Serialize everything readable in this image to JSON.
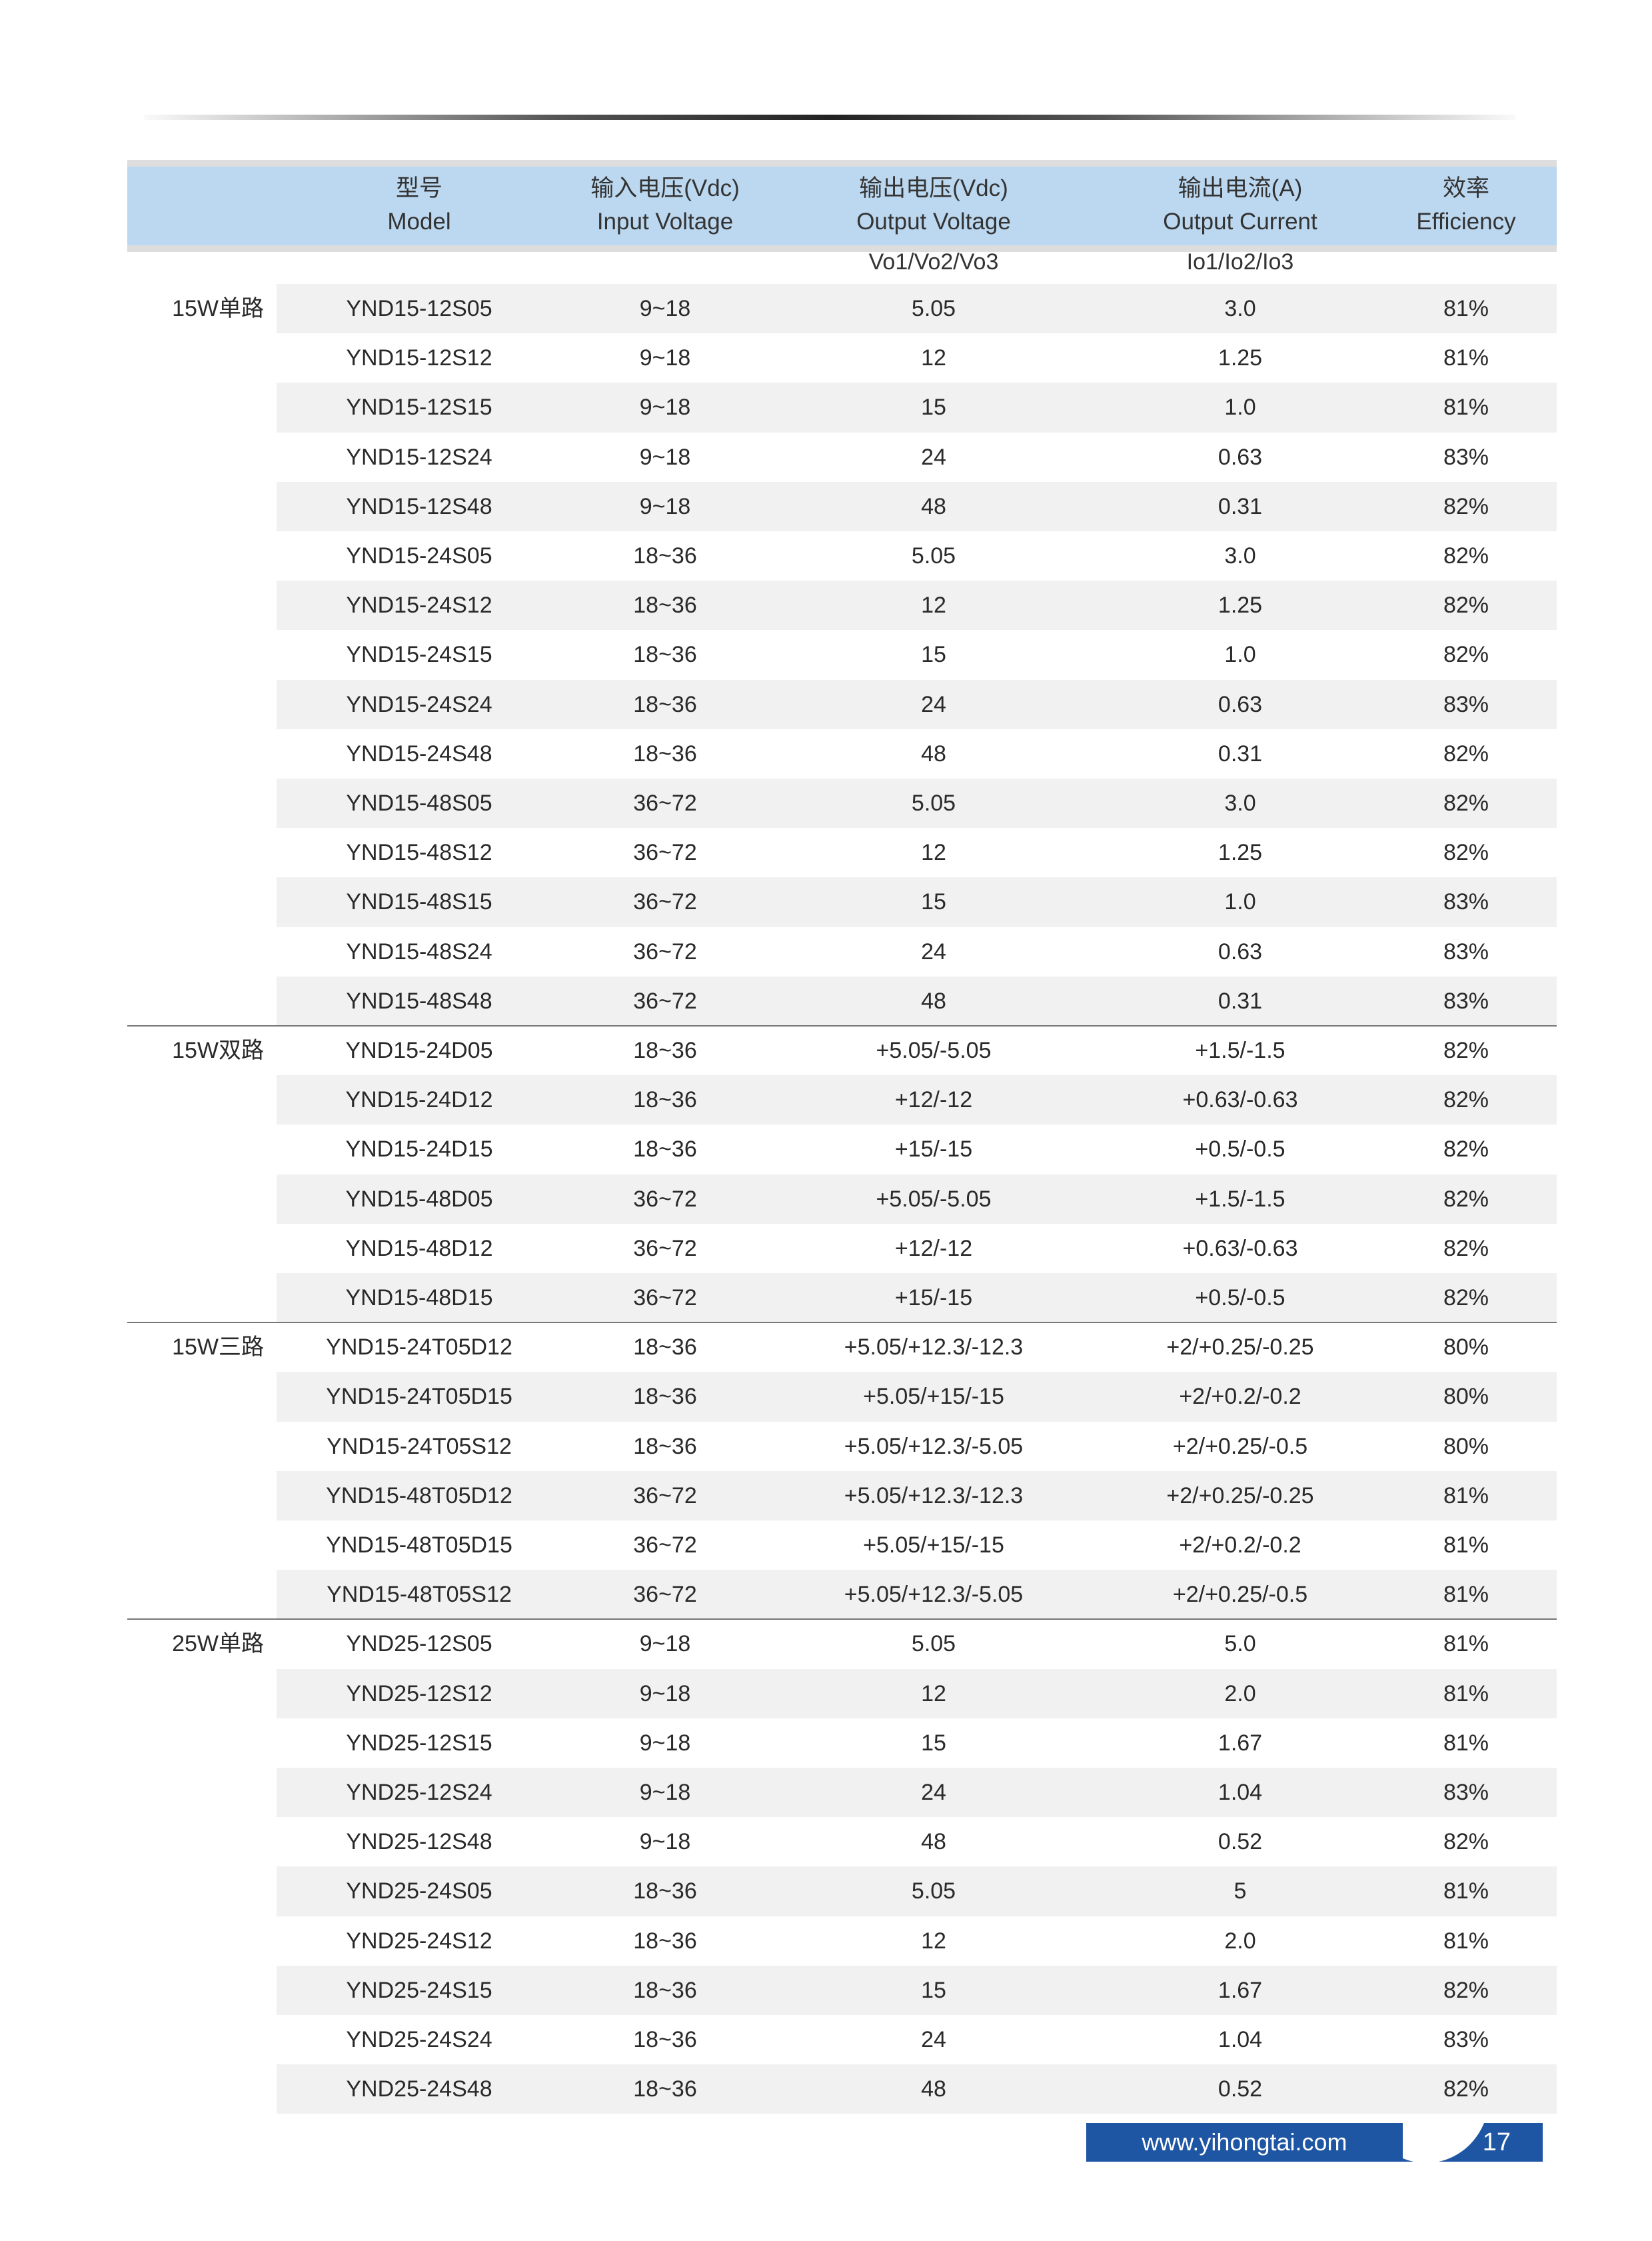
{
  "header": {
    "columns": [
      {
        "zh": "型号",
        "en": "Model"
      },
      {
        "zh": "输入电压(Vdc)",
        "en": "Input Voltage"
      },
      {
        "zh": "输出电压(Vdc)",
        "en": "Output Voltage"
      },
      {
        "zh": "输出电流(A)",
        "en": "Output Current"
      },
      {
        "zh": "效率",
        "en": "Efficiency"
      }
    ],
    "sub_output_voltage": "Vo1/Vo2/Vo3",
    "sub_output_current": "Io1/Io2/Io3"
  },
  "groups": [
    {
      "label": "15W单路",
      "rows": [
        [
          "YND15-12S05",
          "9~18",
          "5.05",
          "3.0",
          "81%"
        ],
        [
          "YND15-12S12",
          "9~18",
          "12",
          "1.25",
          "81%"
        ],
        [
          "YND15-12S15",
          "9~18",
          "15",
          "1.0",
          "81%"
        ],
        [
          "YND15-12S24",
          "9~18",
          "24",
          "0.63",
          "83%"
        ],
        [
          "YND15-12S48",
          "9~18",
          "48",
          "0.31",
          "82%"
        ],
        [
          "YND15-24S05",
          "18~36",
          "5.05",
          "3.0",
          "82%"
        ],
        [
          "YND15-24S12",
          "18~36",
          "12",
          "1.25",
          "82%"
        ],
        [
          "YND15-24S15",
          "18~36",
          "15",
          "1.0",
          "82%"
        ],
        [
          "YND15-24S24",
          "18~36",
          "24",
          "0.63",
          "83%"
        ],
        [
          "YND15-24S48",
          "18~36",
          "48",
          "0.31",
          "82%"
        ],
        [
          "YND15-48S05",
          "36~72",
          "5.05",
          "3.0",
          "82%"
        ],
        [
          "YND15-48S12",
          "36~72",
          "12",
          "1.25",
          "82%"
        ],
        [
          "YND15-48S15",
          "36~72",
          "15",
          "1.0",
          "83%"
        ],
        [
          "YND15-48S24",
          "36~72",
          "24",
          "0.63",
          "83%"
        ],
        [
          "YND15-48S48",
          "36~72",
          "48",
          "0.31",
          "83%"
        ]
      ]
    },
    {
      "label": "15W双路",
      "rows": [
        [
          "YND15-24D05",
          "18~36",
          "+5.05/-5.05",
          "+1.5/-1.5",
          "82%"
        ],
        [
          "YND15-24D12",
          "18~36",
          "+12/-12",
          "+0.63/-0.63",
          "82%"
        ],
        [
          "YND15-24D15",
          "18~36",
          "+15/-15",
          "+0.5/-0.5",
          "82%"
        ],
        [
          "YND15-48D05",
          "36~72",
          "+5.05/-5.05",
          "+1.5/-1.5",
          "82%"
        ],
        [
          "YND15-48D12",
          "36~72",
          "+12/-12",
          "+0.63/-0.63",
          "82%"
        ],
        [
          "YND15-48D15",
          "36~72",
          "+15/-15",
          "+0.5/-0.5",
          "82%"
        ]
      ]
    },
    {
      "label": "15W三路",
      "rows": [
        [
          "YND15-24T05D12",
          "18~36",
          "+5.05/+12.3/-12.3",
          "+2/+0.25/-0.25",
          "80%"
        ],
        [
          "YND15-24T05D15",
          "18~36",
          "+5.05/+15/-15",
          "+2/+0.2/-0.2",
          "80%"
        ],
        [
          "YND15-24T05S12",
          "18~36",
          "+5.05/+12.3/-5.05",
          "+2/+0.25/-0.5",
          "80%"
        ],
        [
          "YND15-48T05D12",
          "36~72",
          "+5.05/+12.3/-12.3",
          "+2/+0.25/-0.25",
          "81%"
        ],
        [
          "YND15-48T05D15",
          "36~72",
          "+5.05/+15/-15",
          "+2/+0.2/-0.2",
          "81%"
        ],
        [
          "YND15-48T05S12",
          "36~72",
          "+5.05/+12.3/-5.05",
          "+2/+0.25/-0.5",
          "81%"
        ]
      ]
    },
    {
      "label": "25W单路",
      "rows": [
        [
          "YND25-12S05",
          "9~18",
          "5.05",
          "5.0",
          "81%"
        ],
        [
          "YND25-12S12",
          "9~18",
          "12",
          "2.0",
          "81%"
        ],
        [
          "YND25-12S15",
          "9~18",
          "15",
          "1.67",
          "81%"
        ],
        [
          "YND25-12S24",
          "9~18",
          "24",
          "1.04",
          "83%"
        ],
        [
          "YND25-12S48",
          "9~18",
          "48",
          "0.52",
          "82%"
        ],
        [
          "YND25-24S05",
          "18~36",
          "5.05",
          "5",
          "81%"
        ],
        [
          "YND25-24S12",
          "18~36",
          "12",
          "2.0",
          "81%"
        ],
        [
          "YND25-24S15",
          "18~36",
          "15",
          "1.67",
          "82%"
        ],
        [
          "YND25-24S24",
          "18~36",
          "24",
          "1.04",
          "83%"
        ],
        [
          "YND25-24S48",
          "18~36",
          "48",
          "0.52",
          "82%"
        ]
      ]
    }
  ],
  "footer": {
    "website": "www.yihongtai.com",
    "page_number": "17"
  },
  "colors": {
    "header_bg": "#bcd8f0",
    "footer_bg": "#1f56a3",
    "row_shade": "#f1f1f1"
  }
}
